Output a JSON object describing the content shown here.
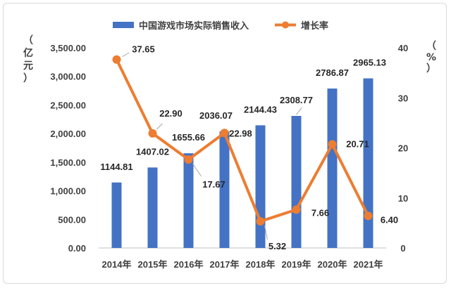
{
  "chart_data": {
    "type": "bar+line",
    "categories": [
      "2014年",
      "2015年",
      "2016年",
      "2017年",
      "2018年",
      "2019年",
      "2020年",
      "2021年"
    ],
    "series": [
      {
        "name": "中国游戏市场实际销售收入",
        "type": "bar",
        "axis": "left",
        "color": "#4472C4",
        "values": [
          1144.81,
          1407.02,
          1655.66,
          2036.07,
          2144.43,
          2308.77,
          2786.87,
          2965.13
        ],
        "labels": [
          "1144.81",
          "1407.02",
          "1655.66",
          "2036.07",
          "2144.43",
          "2308.77",
          "2786.87",
          "2965.13"
        ]
      },
      {
        "name": "增长率",
        "type": "line",
        "axis": "right",
        "color": "#ED7D31",
        "values": [
          37.65,
          22.9,
          17.67,
          22.98,
          5.32,
          7.66,
          20.71,
          6.4
        ],
        "labels": [
          "37.65",
          "22.90",
          "17.67",
          "22.98",
          "5.32",
          "7.66",
          "20.71",
          "6.40"
        ]
      }
    ],
    "y_left": {
      "label_chars": [
        "（",
        "亿",
        "元",
        "）"
      ],
      "ylim": [
        0,
        3500
      ],
      "ticks": [
        "0.00",
        "500.00",
        "1,000.00",
        "1,500.00",
        "2,000.00",
        "2,500.00",
        "3,000.00",
        "3,500.00"
      ]
    },
    "y_right": {
      "label_chars": [
        "（",
        "%",
        "）"
      ],
      "ylim": [
        0,
        40
      ],
      "ticks": [
        "0",
        "10",
        "20",
        "30",
        "40"
      ]
    },
    "legend_position": "top",
    "grid": false
  }
}
